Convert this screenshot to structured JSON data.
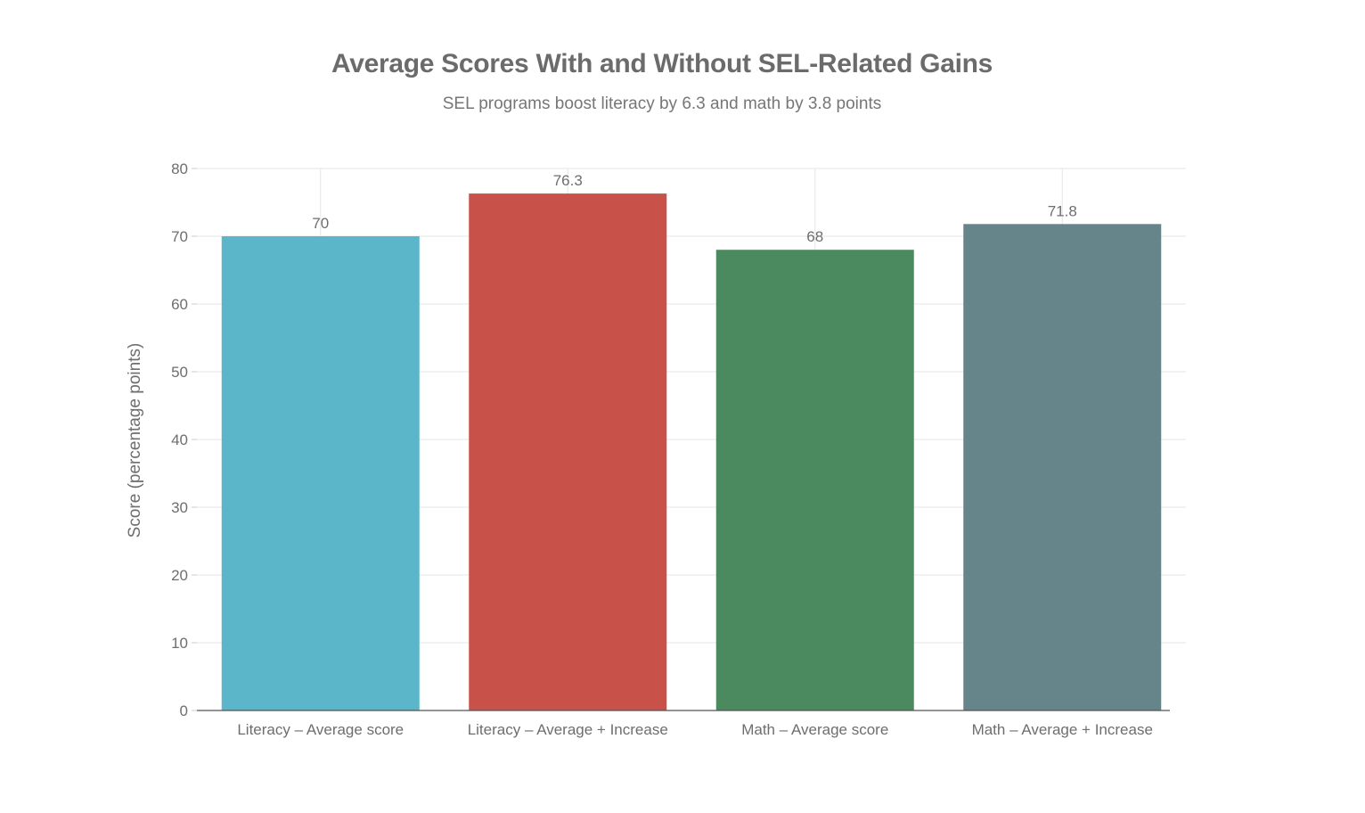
{
  "chart_data": {
    "type": "bar",
    "title": "Average Scores With and Without SEL-Related Gains",
    "subtitle": "SEL programs boost literacy by 6.3 and math by 3.8 points",
    "xlabel": "",
    "ylabel": "Score (percentage points)",
    "ylim": [
      0,
      80
    ],
    "yticks": [
      0,
      10,
      20,
      30,
      40,
      50,
      60,
      70,
      80
    ],
    "grid": true,
    "categories": [
      "Literacy – Average score",
      "Literacy – Average + Increase",
      "Math – Average score",
      "Math – Average + Increase"
    ],
    "values": [
      70,
      76.3,
      68,
      71.8
    ],
    "value_labels": [
      "70",
      "76.3",
      "68",
      "71.8"
    ],
    "colors": [
      "#5ab6c8",
      "#c8524a",
      "#4a8a5e",
      "#66858b"
    ]
  }
}
